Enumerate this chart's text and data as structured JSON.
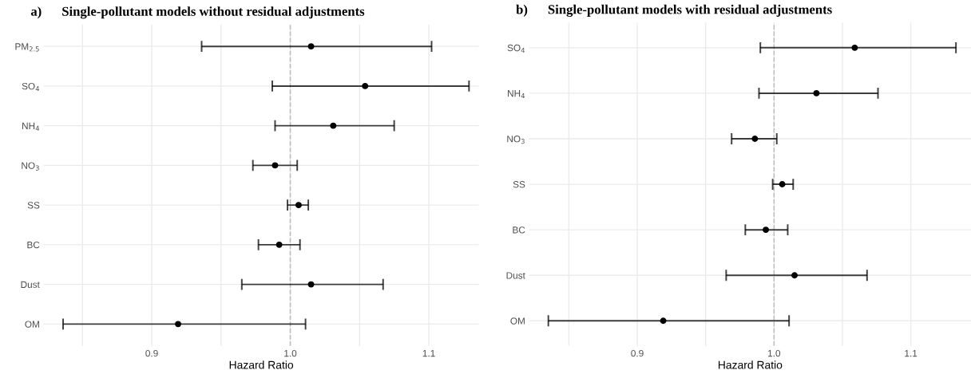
{
  "chart_data": [
    {
      "type": "scatter",
      "orientation": "horizontal",
      "title": "a)      Single-pollutant models without residual adjustments",
      "xlabel": "Hazard Ratio",
      "categories": [
        "PM$_{2.5}$",
        "SO$_{4}$",
        "NH$_{4}$",
        "NO$_{3}$",
        "SS",
        "BC",
        "Dust",
        "OM"
      ],
      "values": [
        1.015,
        1.054,
        1.031,
        0.989,
        1.006,
        0.992,
        1.015,
        0.919
      ],
      "errors": [
        [
          0.936,
          1.102
        ],
        [
          0.987,
          1.129
        ],
        [
          0.989,
          1.075
        ],
        [
          0.973,
          1.005
        ],
        [
          0.998,
          1.013
        ],
        [
          0.977,
          1.007
        ],
        [
          0.965,
          1.067
        ],
        [
          0.836,
          1.011
        ]
      ],
      "color": "#000000",
      "marker": "circle",
      "xlim": [
        0.822,
        1.136
      ],
      "xticks": [
        {
          "value": 0.85,
          "label": null
        },
        {
          "value": 0.9,
          "label": "0.9"
        },
        {
          "value": 0.95,
          "label": null
        },
        {
          "value": 1.0,
          "label": "1.0"
        },
        {
          "value": 1.05,
          "label": null
        },
        {
          "value": 1.1,
          "label": "1.1"
        }
      ],
      "ref_lines": [
        {
          "axis": "x",
          "value": 1.0,
          "color": "#bdbdbd",
          "line_style": "dashed"
        }
      ],
      "grid": true
    },
    {
      "type": "scatter",
      "orientation": "horizontal",
      "title": "b)      Single-pollutant models with residual adjustments",
      "xlabel": "Hazard Ratio",
      "categories": [
        "SO$_{4}$",
        "NH$_{4}$",
        "NO$_{3}$",
        "SS",
        "BC",
        "Dust",
        "OM"
      ],
      "values": [
        1.059,
        1.031,
        0.986,
        1.006,
        0.994,
        1.015,
        0.919
      ],
      "errors": [
        [
          0.99,
          1.133
        ],
        [
          0.989,
          1.076
        ],
        [
          0.969,
          1.002
        ],
        [
          0.999,
          1.014
        ],
        [
          0.979,
          1.01
        ],
        [
          0.965,
          1.068
        ],
        [
          0.835,
          1.011
        ]
      ],
      "color": "#000000",
      "marker": "circle",
      "xlim": [
        0.821,
        1.144
      ],
      "xticks": [
        {
          "value": 0.85,
          "label": null
        },
        {
          "value": 0.9,
          "label": "0.9"
        },
        {
          "value": 0.95,
          "label": null
        },
        {
          "value": 1.0,
          "label": "1.0"
        },
        {
          "value": 1.05,
          "label": null
        },
        {
          "value": 1.1,
          "label": "1.1"
        }
      ],
      "ref_lines": [
        {
          "axis": "x",
          "value": 1.0,
          "color": "#bdbdbd",
          "line_style": "dashed"
        }
      ],
      "grid": true
    }
  ]
}
